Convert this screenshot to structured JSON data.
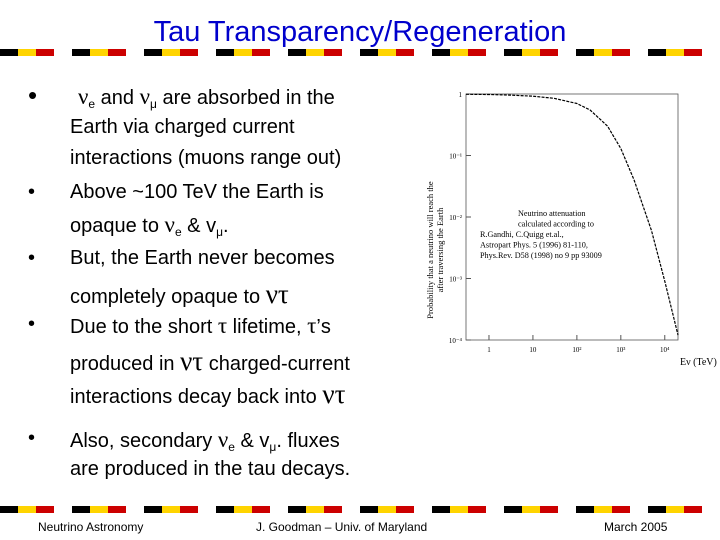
{
  "title": "Tau Transparency/Regeneration",
  "stripe_colors": [
    "#000000",
    "#ffd400",
    "#cc0000",
    "#ffffff"
  ],
  "bullets": [
    {
      "lines": [
        {
          "parts": [
            {
              "t": "ν",
              "c": "greek"
            },
            {
              "t": "e",
              "c": "sub"
            },
            {
              "t": " and ",
              "c": ""
            },
            {
              "t": "ν",
              "c": "greek"
            },
            {
              "t": "μ",
              "c": "sub"
            },
            {
              "t": " are absorbed in the",
              "c": ""
            }
          ]
        },
        {
          "parts": [
            {
              "t": "Earth via charged current",
              "c": ""
            }
          ]
        },
        {
          "parts": [
            {
              "t": "interactions (muons range out)",
              "c": ""
            }
          ]
        }
      ]
    },
    {
      "lines": [
        {
          "parts": [
            {
              "t": "Above ~100 TeV the Earth is",
              "c": ""
            }
          ]
        },
        {
          "parts": [
            {
              "t": "opaque to ",
              "c": ""
            },
            {
              "t": "ν",
              "c": "greek"
            },
            {
              "t": "e",
              "c": "sub"
            },
            {
              "t": " & ",
              "c": ""
            },
            {
              "t": "v",
              "c": ""
            },
            {
              "t": "μ",
              "c": "sub"
            },
            {
              "t": ".",
              "c": ""
            }
          ]
        }
      ]
    },
    {
      "lines": [
        {
          "parts": [
            {
              "t": "But, the Earth never becomes",
              "c": ""
            }
          ]
        },
        {
          "parts": [
            {
              "t": "completely opaque to ",
              "c": ""
            },
            {
              "t": "ντ",
              "c": "greek big"
            }
          ]
        }
      ]
    },
    {
      "lines": [
        {
          "parts": [
            {
              "t": "Due to the short ",
              "c": ""
            },
            {
              "t": "τ",
              "c": "greek"
            },
            {
              "t": " lifetime, ",
              "c": ""
            },
            {
              "t": "τ",
              "c": "greek"
            },
            {
              "t": "’s",
              "c": ""
            }
          ]
        },
        {
          "parts": [
            {
              "t": "produced in ",
              "c": ""
            },
            {
              "t": "ντ",
              "c": "greek big"
            },
            {
              "t": " charged-current",
              "c": ""
            }
          ]
        },
        {
          "parts": [
            {
              "t": "interactions decay back into ",
              "c": ""
            },
            {
              "t": "ντ",
              "c": "greek big"
            }
          ]
        }
      ]
    },
    {
      "lines": [
        {
          "parts": [
            {
              "t": "Also, secondary ",
              "c": ""
            },
            {
              "t": "ν",
              "c": "greek"
            },
            {
              "t": "e",
              "c": "sub"
            },
            {
              "t": " & ",
              "c": ""
            },
            {
              "t": "v",
              "c": ""
            },
            {
              "t": "μ",
              "c": "sub"
            },
            {
              "t": ". fluxes",
              "c": ""
            }
          ]
        },
        {
          "parts": [
            {
              "t": "are produced in the tau decays.",
              "c": ""
            }
          ]
        }
      ]
    }
  ],
  "bullet_glyph": "•",
  "figure": {
    "ylabel_lines": [
      "Probability that a neutrino will reach the",
      "after traversing the Earth"
    ],
    "xlabel": "Eν (TeV)",
    "yticks": [
      "1",
      "10⁻¹",
      "10⁻²",
      "10⁻³",
      "10⁻⁴"
    ],
    "xticks": [
      "1",
      "10",
      "10²",
      "10³",
      "10⁴"
    ],
    "annotation": [
      "Neutrino attenuation",
      "calculated according to",
      "R.Gandhi, C.Quigg et.al.,",
      "Astropart Phys. 5 (1996) 81-110,",
      "Phys.Rev. D58 (1998) no 9 pp 93009"
    ]
  },
  "chart_data": {
    "type": "line",
    "xlabel": "Eν (TeV)",
    "ylabel": "Probability that a neutrino will reach the after traversing the Earth",
    "x_scale": "log",
    "y_scale": "log",
    "xlim": [
      0.3,
      20000
    ],
    "ylim": [
      0.0001,
      1
    ],
    "series": [
      {
        "x": [
          0.3,
          1,
          3,
          10,
          30,
          100,
          200,
          500,
          1000,
          2000,
          5000,
          10000,
          20000
        ],
        "y": [
          0.99,
          0.98,
          0.96,
          0.92,
          0.85,
          0.7,
          0.55,
          0.3,
          0.13,
          0.04,
          0.006,
          0.0009,
          0.00012
        ]
      }
    ]
  },
  "footer": {
    "left": "Neutrino Astronomy",
    "center": "J. Goodman – Univ. of Maryland",
    "right": "March 2005"
  }
}
